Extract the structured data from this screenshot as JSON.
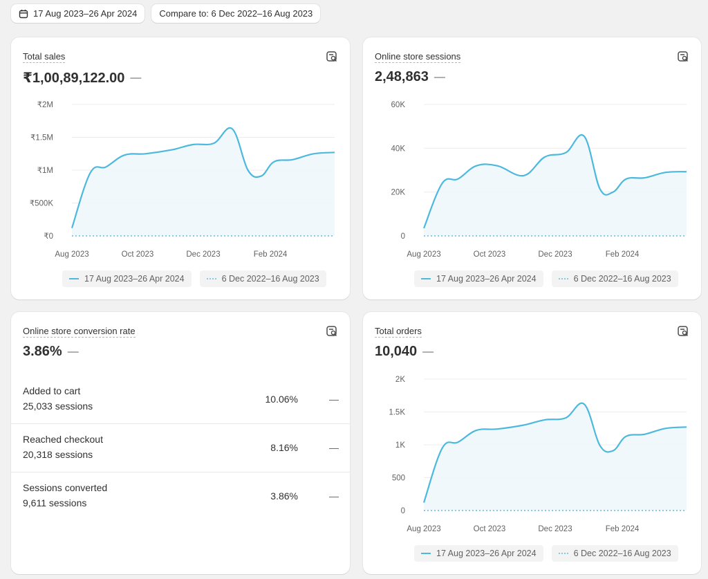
{
  "date_range": {
    "label": "17 Aug 2023–26 Apr 2024",
    "icon": "calendar-icon"
  },
  "compare": {
    "label": "Compare to: 6 Dec 2022–16 Aug 2023"
  },
  "legend": {
    "current": "17 Aug 2023–26 Apr 2024",
    "previous": "6 Dec 2022–16 Aug 2023"
  },
  "colors": {
    "series_current": "#4cb8dd",
    "series_previous": "#86c9e3",
    "area_fill": "#eef7fb"
  },
  "cards": {
    "total_sales": {
      "title": "Total sales",
      "value": "₹1,00,89,122.00",
      "change": "—"
    },
    "sessions": {
      "title": "Online store sessions",
      "value": "2,48,863",
      "change": "—"
    },
    "conversion": {
      "title": "Online store conversion rate",
      "value": "3.86%",
      "change": "—",
      "rows": [
        {
          "label": "Added to cart",
          "sub": "25,033 sessions",
          "pct": "10.06%",
          "change": "—"
        },
        {
          "label": "Reached checkout",
          "sub": "20,318 sessions",
          "pct": "8.16%",
          "change": "—"
        },
        {
          "label": "Sessions converted",
          "sub": "9,611 sessions",
          "pct": "3.86%",
          "change": "—"
        }
      ]
    },
    "orders": {
      "title": "Total orders",
      "value": "10,040",
      "change": "—"
    }
  },
  "chart_data": [
    {
      "type": "area",
      "title": "Total sales",
      "x_ticks": [
        "Aug 2023",
        "Oct 2023",
        "Dec 2023",
        "Feb 2024"
      ],
      "y_ticks": [
        "₹2M",
        "₹1.5M",
        "₹1M",
        "₹500K",
        "₹0"
      ],
      "ylim": [
        0,
        2000000
      ],
      "x": [
        0,
        0.07,
        0.13,
        0.2,
        0.28,
        0.38,
        0.46,
        0.54,
        0.61,
        0.67,
        0.72,
        0.77,
        0.84,
        0.92,
        1.0
      ],
      "series": [
        {
          "name": "17 Aug 2023–26 Apr 2024",
          "values": [
            120000,
            960000,
            1050000,
            1230000,
            1250000,
            1310000,
            1390000,
            1410000,
            1630000,
            1000000,
            910000,
            1130000,
            1160000,
            1250000,
            1270000
          ]
        },
        {
          "name": "6 Dec 2022–16 Aug 2023",
          "values": [
            0,
            0,
            0,
            0,
            0,
            0,
            0,
            0,
            0,
            0,
            0,
            0,
            0,
            0,
            0
          ]
        }
      ],
      "grid": true,
      "legend": "bottom"
    },
    {
      "type": "area",
      "title": "Online store sessions",
      "x_ticks": [
        "Aug 2023",
        "Oct 2023",
        "Dec 2023",
        "Feb 2024"
      ],
      "y_ticks": [
        "60K",
        "40K",
        "20K",
        "0"
      ],
      "ylim": [
        0,
        60000
      ],
      "x": [
        0,
        0.07,
        0.13,
        0.2,
        0.28,
        0.38,
        0.46,
        0.54,
        0.61,
        0.67,
        0.72,
        0.77,
        0.84,
        0.92,
        1.0
      ],
      "series": [
        {
          "name": "17 Aug 2023–26 Apr 2024",
          "values": [
            3500,
            24000,
            26000,
            32000,
            32000,
            27500,
            36000,
            38000,
            45500,
            21500,
            20000,
            26000,
            26500,
            29000,
            29300
          ]
        },
        {
          "name": "6 Dec 2022–16 Aug 2023",
          "values": [
            0,
            0,
            0,
            0,
            0,
            0,
            0,
            0,
            0,
            0,
            0,
            0,
            0,
            0,
            0
          ]
        }
      ],
      "grid": true,
      "legend": "bottom"
    },
    {
      "type": "area",
      "title": "Total orders",
      "x_ticks": [
        "Aug 2023",
        "Oct 2023",
        "Dec 2023",
        "Feb 2024"
      ],
      "y_ticks": [
        "2K",
        "1.5K",
        "1K",
        "500",
        "0"
      ],
      "ylim": [
        0,
        2000
      ],
      "x": [
        0,
        0.07,
        0.13,
        0.2,
        0.28,
        0.38,
        0.46,
        0.54,
        0.61,
        0.67,
        0.72,
        0.77,
        0.84,
        0.92,
        1.0
      ],
      "series": [
        {
          "name": "17 Aug 2023–26 Apr 2024",
          "values": [
            120,
            950,
            1040,
            1220,
            1240,
            1300,
            1380,
            1410,
            1620,
            990,
            910,
            1130,
            1160,
            1250,
            1270
          ]
        },
        {
          "name": "6 Dec 2022–16 Aug 2023",
          "values": [
            0,
            0,
            0,
            0,
            0,
            0,
            0,
            0,
            0,
            0,
            0,
            0,
            0,
            0,
            0
          ]
        }
      ],
      "grid": true,
      "legend": "bottom"
    }
  ]
}
